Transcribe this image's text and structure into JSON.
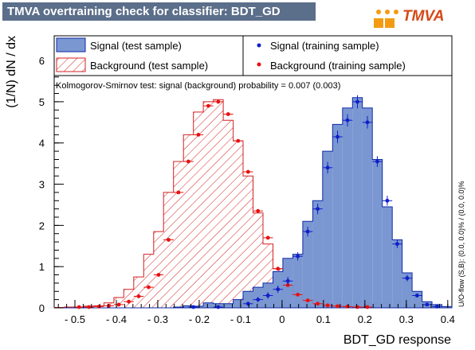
{
  "window": {
    "title": "TMVA overtraining check for classifier: BDT_GD",
    "logo_text": "TMVA"
  },
  "colors": {
    "title_bg": "#5b6e8a",
    "signal_fill": "#7a97d2",
    "signal_line": "#0f2aa8",
    "signal_marker": "#0f1fc8",
    "background_line": "#d42020",
    "background_marker": "#e81010",
    "logo_orange": "#f39c12",
    "logo_red": "#d44a17"
  },
  "legend": {
    "signal_test": "Signal (test sample)",
    "background_test": "Background (test sample)",
    "signal_train": "Signal (training sample)",
    "background_train": "Background (training sample)"
  },
  "ks_text": "Kolmogorov-Smirnov test: signal (background) probability = 0.007 (0.003)",
  "side_text": "U/O-flow (S,B): (0.0, 0.0)% / (0.0, 0.0)%",
  "chart_data": {
    "type": "bar",
    "xlabel": "BDT_GD response",
    "ylabel": "(1/N) dN / dx",
    "xlim": [
      -0.55,
      0.41
    ],
    "ylim": [
      0,
      6.6
    ],
    "x_ticks": [
      -0.5,
      -0.4,
      -0.3,
      -0.2,
      -0.1,
      0,
      0.1,
      0.2,
      0.3,
      0.4
    ],
    "x_tick_labels": [
      "- 0.5",
      "- 0.4",
      "- 0.3",
      "- 0.2",
      "- 0.1",
      "0",
      "0.1",
      "0.2",
      "0.3",
      "0.4"
    ],
    "y_ticks": [
      0,
      1,
      2,
      3,
      4,
      5,
      6
    ],
    "y_tick_labels": [
      "0",
      "1",
      "2",
      "3",
      "4",
      "5",
      "6"
    ],
    "bin_edges": [
      -0.55,
      -0.526,
      -0.502,
      -0.478,
      -0.454,
      -0.43,
      -0.406,
      -0.382,
      -0.358,
      -0.334,
      -0.31,
      -0.286,
      -0.262,
      -0.238,
      -0.214,
      -0.19,
      -0.166,
      -0.142,
      -0.118,
      -0.094,
      -0.07,
      -0.046,
      -0.022,
      0.002,
      0.026,
      0.05,
      0.074,
      0.098,
      0.122,
      0.146,
      0.17,
      0.194,
      0.218,
      0.242,
      0.266,
      0.29,
      0.314,
      0.338,
      0.362,
      0.386,
      0.41
    ],
    "series": [
      {
        "name": "Signal (test sample)",
        "style": "filled-histogram",
        "values": [
          0,
          0,
          0,
          0,
          0,
          0,
          0,
          0,
          0,
          0,
          0,
          0,
          0.02,
          0.05,
          0.04,
          0.12,
          0.1,
          0.1,
          0.2,
          0.4,
          0.5,
          0.6,
          0.88,
          1.2,
          1.3,
          2.1,
          2.6,
          3.8,
          4.45,
          4.85,
          5.1,
          4.85,
          3.6,
          2.45,
          1.65,
          0.85,
          0.4,
          0.15,
          0.08,
          0.03
        ]
      },
      {
        "name": "Background (test sample)",
        "style": "hatched-histogram",
        "values": [
          0.01,
          0.02,
          0.02,
          0.04,
          0.05,
          0.12,
          0.25,
          0.45,
          0.75,
          1.3,
          1.85,
          2.8,
          3.55,
          4.2,
          4.75,
          5.0,
          5.05,
          4.55,
          4.05,
          3.2,
          2.3,
          1.55,
          0.95,
          0.55,
          0.28,
          0.2,
          0.12,
          0.06,
          0.04,
          0.03,
          0.02,
          0.02,
          0.01,
          0.01,
          0,
          0,
          0,
          0,
          0,
          0
        ]
      },
      {
        "name": "Signal (training sample)",
        "style": "points",
        "x": [
          -0.214,
          -0.154,
          -0.082,
          -0.058,
          -0.034,
          -0.01,
          0.014,
          0.038,
          0.062,
          0.086,
          0.11,
          0.134,
          0.158,
          0.182,
          0.206,
          0.23,
          0.254,
          0.278,
          0.302,
          0.326,
          0.35,
          0.374
        ],
        "values": [
          0.02,
          0.02,
          0.1,
          0.2,
          0.3,
          0.45,
          0.65,
          1.25,
          1.85,
          2.4,
          3.4,
          4.15,
          4.55,
          5.0,
          4.5,
          3.55,
          2.6,
          1.55,
          0.72,
          0.3,
          0.08,
          0.03
        ],
        "errors": [
          0.02,
          0.02,
          0.05,
          0.06,
          0.08,
          0.09,
          0.1,
          0.1,
          0.12,
          0.13,
          0.14,
          0.15,
          0.15,
          0.16,
          0.15,
          0.13,
          0.12,
          0.1,
          0.08,
          0.05,
          0.03,
          0.02
        ]
      },
      {
        "name": "Background (training sample)",
        "style": "points",
        "x": [
          -0.49,
          -0.466,
          -0.442,
          -0.418,
          -0.394,
          -0.37,
          -0.346,
          -0.322,
          -0.298,
          -0.274,
          -0.25,
          -0.226,
          -0.202,
          -0.178,
          -0.154,
          -0.13,
          -0.106,
          -0.082,
          -0.058,
          -0.034,
          -0.01,
          0.014,
          0.038,
          0.062,
          0.086,
          0.11,
          0.134,
          0.158,
          0.182,
          0.206
        ],
        "values": [
          0.02,
          0.02,
          0.03,
          0.05,
          0.08,
          0.15,
          0.28,
          0.5,
          0.8,
          1.65,
          2.8,
          3.55,
          4.2,
          4.9,
          5.0,
          4.7,
          4.05,
          3.3,
          2.35,
          1.7,
          0.95,
          0.55,
          0.32,
          0.18,
          0.1,
          0.06,
          0.04,
          0.03,
          0.02,
          0.02
        ]
      }
    ],
    "legend_position": "top",
    "grid": false
  }
}
